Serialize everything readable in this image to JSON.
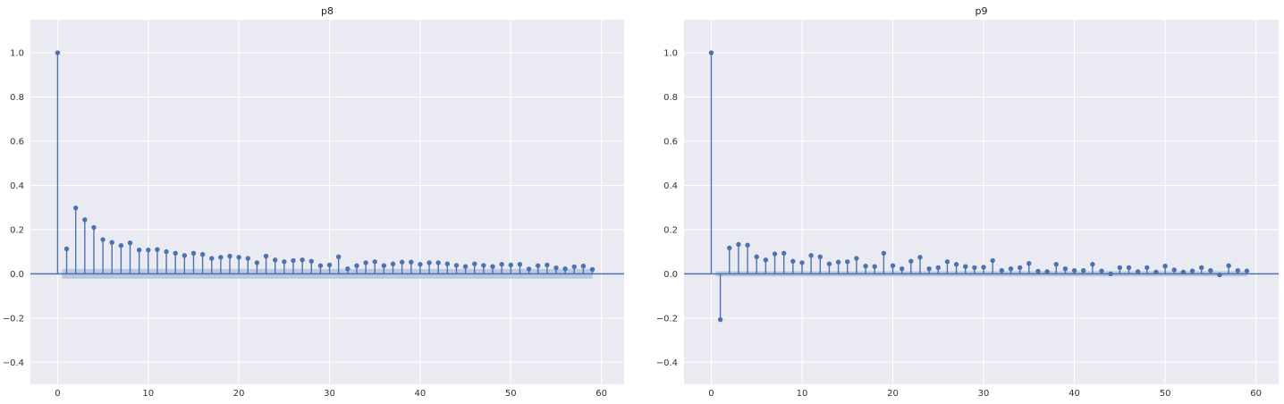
{
  "chart_data": [
    {
      "type": "stem",
      "title": "p8",
      "xlim": [
        -3,
        62.5
      ],
      "ylim": [
        -0.5,
        1.15
      ],
      "xticks": [
        0,
        10,
        20,
        30,
        40,
        50,
        60
      ],
      "yticks": [
        -0.4,
        -0.2,
        0.0,
        0.2,
        0.4,
        0.6,
        0.8,
        1.0
      ],
      "xticklabels": [
        "0",
        "10",
        "20",
        "30",
        "40",
        "50",
        "60"
      ],
      "yticklabels": [
        "−0.4",
        "−0.2",
        "0.0",
        "0.2",
        "0.4",
        "0.6",
        "0.8",
        "1.0"
      ],
      "grid": true,
      "lags": [
        0,
        1,
        2,
        3,
        4,
        5,
        6,
        7,
        8,
        9,
        10,
        11,
        12,
        13,
        14,
        15,
        16,
        17,
        18,
        19,
        20,
        21,
        22,
        23,
        24,
        25,
        26,
        27,
        28,
        29,
        30,
        31,
        32,
        33,
        34,
        35,
        36,
        37,
        38,
        39,
        40,
        41,
        42,
        43,
        44,
        45,
        46,
        47,
        48,
        49,
        50,
        51,
        52,
        53,
        54,
        55,
        56,
        57,
        58,
        59
      ],
      "values": [
        1.0,
        0.113,
        0.298,
        0.245,
        0.21,
        0.155,
        0.142,
        0.128,
        0.14,
        0.108,
        0.108,
        0.11,
        0.1,
        0.093,
        0.083,
        0.093,
        0.088,
        0.07,
        0.075,
        0.08,
        0.075,
        0.07,
        0.05,
        0.08,
        0.063,
        0.055,
        0.06,
        0.063,
        0.057,
        0.037,
        0.04,
        0.077,
        0.023,
        0.037,
        0.05,
        0.055,
        0.037,
        0.045,
        0.053,
        0.053,
        0.043,
        0.05,
        0.05,
        0.045,
        0.038,
        0.033,
        0.045,
        0.038,
        0.033,
        0.043,
        0.04,
        0.043,
        0.022,
        0.037,
        0.04,
        0.027,
        0.023,
        0.032,
        0.035,
        0.02
      ],
      "confint_halfwidth": 0.022,
      "colors": {
        "stem": "#4c72b0",
        "confint": "#b4c4de",
        "background": "#eaeaf2",
        "grid": "#ffffff"
      }
    },
    {
      "type": "stem",
      "title": "p9",
      "xlim": [
        -3,
        62.5
      ],
      "ylim": [
        -0.5,
        1.15
      ],
      "xticks": [
        0,
        10,
        20,
        30,
        40,
        50,
        60
      ],
      "yticks": [
        -0.4,
        -0.2,
        0.0,
        0.2,
        0.4,
        0.6,
        0.8,
        1.0
      ],
      "xticklabels": [
        "0",
        "10",
        "20",
        "30",
        "40",
        "50",
        "60"
      ],
      "yticklabels": [
        "−0.4",
        "−0.2",
        "0.0",
        "0.2",
        "0.4",
        "0.6",
        "0.8",
        "1.0"
      ],
      "grid": true,
      "lags": [
        0,
        1,
        2,
        3,
        4,
        5,
        6,
        7,
        8,
        9,
        10,
        11,
        12,
        13,
        14,
        15,
        16,
        17,
        18,
        19,
        20,
        21,
        22,
        23,
        24,
        25,
        26,
        27,
        28,
        29,
        30,
        31,
        32,
        33,
        34,
        35,
        36,
        37,
        38,
        39,
        40,
        41,
        42,
        43,
        44,
        45,
        46,
        47,
        48,
        49,
        50,
        51,
        52,
        53,
        54,
        55,
        56,
        57,
        58,
        59
      ],
      "values": [
        1.0,
        -0.207,
        0.117,
        0.133,
        0.13,
        0.077,
        0.063,
        0.09,
        0.093,
        0.057,
        0.05,
        0.083,
        0.077,
        0.045,
        0.053,
        0.055,
        0.07,
        0.035,
        0.033,
        0.093,
        0.037,
        0.023,
        0.057,
        0.075,
        0.023,
        0.028,
        0.055,
        0.043,
        0.033,
        0.028,
        0.03,
        0.06,
        0.015,
        0.023,
        0.028,
        0.047,
        0.012,
        0.01,
        0.043,
        0.023,
        0.015,
        0.015,
        0.043,
        0.013,
        0.0,
        0.028,
        0.028,
        0.01,
        0.028,
        0.008,
        0.035,
        0.018,
        0.008,
        0.013,
        0.028,
        0.015,
        -0.005,
        0.037,
        0.015,
        0.013
      ],
      "confint_halfwidth": 0.012,
      "colors": {
        "stem": "#4c72b0",
        "confint": "#b4c4de",
        "background": "#eaeaf2",
        "grid": "#ffffff"
      }
    }
  ]
}
